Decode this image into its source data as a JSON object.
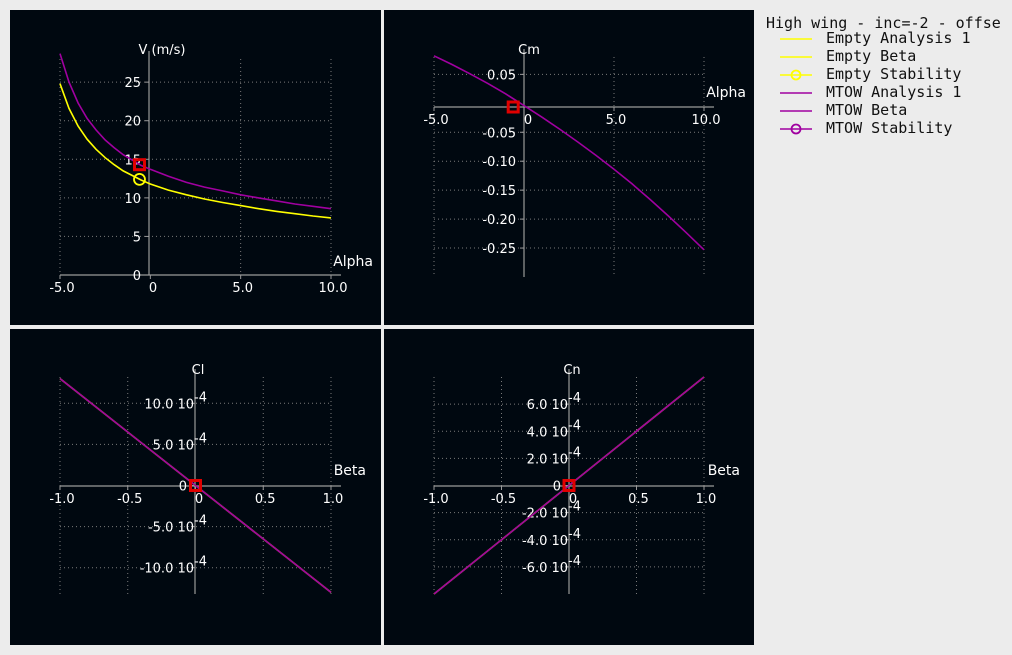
{
  "legend": {
    "title": "High wing - inc=-2 - offse",
    "entries": [
      {
        "label": "Empty Analysis 1",
        "color": "#ffff00",
        "marker": false
      },
      {
        "label": "Empty Beta",
        "color": "#ffff00",
        "marker": false
      },
      {
        "label": "Empty Stability",
        "color": "#ffff00",
        "marker": true
      },
      {
        "label": "MTOW Analysis 1",
        "color": "#a000a0",
        "marker": false
      },
      {
        "label": "MTOW Beta",
        "color": "#a000a0",
        "marker": false
      },
      {
        "label": "MTOW Stability",
        "color": "#a000a0",
        "marker": true
      }
    ]
  },
  "chart_data": [
    {
      "type": "line",
      "ylabel": "V (m/s)",
      "xlabel": "Alpha",
      "xlim": [
        -5,
        10
      ],
      "ylim": [
        0,
        28
      ],
      "xticks": [
        -5,
        0,
        5,
        10
      ],
      "xtick_labels": [
        "-5.0",
        "0",
        "5.0",
        "10.0"
      ],
      "yticks": [
        0,
        5,
        10,
        15,
        20,
        25
      ],
      "ytick_labels": [
        "0",
        "5",
        "10",
        "15",
        "20",
        "25"
      ],
      "series": [
        {
          "name": "Empty Analysis 1",
          "color": "#ffff00",
          "x": [
            -5,
            -4.5,
            -4,
            -3.5,
            -3,
            -2.5,
            -2,
            -1.5,
            -1,
            -0.5,
            0,
            1,
            2,
            3,
            4,
            5,
            6,
            7,
            8,
            9,
            10
          ],
          "y": [
            24.8,
            21.6,
            19.3,
            17.6,
            16.3,
            15.2,
            14.3,
            13.5,
            12.9,
            12.3,
            11.8,
            11.0,
            10.4,
            9.85,
            9.4,
            9.0,
            8.6,
            8.25,
            7.95,
            7.65,
            7.4
          ]
        },
        {
          "name": "MTOW Analysis 1",
          "color": "#a000a0",
          "x": [
            -5,
            -4.5,
            -4,
            -3.5,
            -3,
            -2.5,
            -2,
            -1.5,
            -1,
            -0.5,
            0,
            1,
            2,
            3,
            4,
            5,
            6,
            7,
            8,
            9,
            10
          ],
          "y": [
            28.7,
            25.0,
            22.3,
            20.3,
            18.8,
            17.5,
            16.5,
            15.6,
            14.9,
            14.2,
            13.7,
            12.8,
            12.0,
            11.4,
            10.9,
            10.4,
            10.0,
            9.6,
            9.2,
            8.9,
            8.6
          ]
        }
      ],
      "points": [
        {
          "name": "Empty Stability",
          "x": -0.6,
          "y": 12.4,
          "style": "circle",
          "color": "#ffff00"
        },
        {
          "name": "MTOW Stability",
          "x": -0.6,
          "y": 14.3,
          "style": "square",
          "color": "#e00000"
        }
      ]
    },
    {
      "type": "line",
      "ylabel": "Cm",
      "xlabel": "Alpha",
      "xlim": [
        -5,
        10
      ],
      "ylim": [
        -0.3,
        0.08
      ],
      "xticks": [
        -5,
        0,
        5,
        10
      ],
      "xtick_labels": [
        "-5.0",
        "0",
        "5.0",
        "10.0"
      ],
      "yticks": [
        0.05,
        -0.05,
        -0.1,
        -0.15,
        -0.2,
        -0.25
      ],
      "ytick_labels": [
        "0.05",
        "-0.05",
        "-0.10",
        "-0.15",
        "-0.20",
        "-0.25"
      ],
      "series": [
        {
          "name": "MTOW Analysis 1",
          "color": "#a000a0",
          "x": [
            -5,
            -4,
            -3,
            -2,
            -1,
            0,
            1,
            2,
            3,
            4,
            5,
            6,
            7,
            8,
            9,
            10
          ],
          "y": [
            0.082,
            0.067,
            0.051,
            0.034,
            0.016,
            -0.004,
            -0.024,
            -0.045,
            -0.067,
            -0.09,
            -0.114,
            -0.139,
            -0.166,
            -0.194,
            -0.223,
            -0.253
          ]
        }
      ],
      "points": [
        {
          "name": "MTOW Stability",
          "x": -0.6,
          "y": 0.0,
          "style": "square",
          "color": "#e00000"
        }
      ]
    },
    {
      "type": "line",
      "ylabel": "Cl",
      "xlabel": "Beta",
      "xlim": [
        -1,
        1
      ],
      "ylim": [
        -13.2,
        13.2
      ],
      "y_multiplier_label": "10",
      "y_exponent_label": "-4",
      "xticks": [
        -1,
        -0.5,
        0,
        0.5,
        1
      ],
      "xtick_labels": [
        "-1.0",
        "-0.5",
        "0",
        "0.5",
        "1.0"
      ],
      "yticks": [
        10,
        5,
        0,
        -5,
        -10
      ],
      "ytick_labels": [
        "10.0",
        "5.0",
        "0",
        "-5.0",
        "-10.0"
      ],
      "series": [
        {
          "name": "Empty Beta",
          "color": "#ffff00",
          "x": [
            -1,
            1
          ],
          "y": [
            13.0,
            -13.0
          ]
        },
        {
          "name": "MTOW Beta",
          "color": "#a000a0",
          "x": [
            -1,
            1
          ],
          "y": [
            13.0,
            -13.0
          ]
        }
      ],
      "points": [
        {
          "name": "MTOW Stability",
          "x": 0,
          "y": 0,
          "style": "square",
          "color": "#e00000"
        }
      ]
    },
    {
      "type": "line",
      "ylabel": "Cn",
      "xlabel": "Beta",
      "xlim": [
        -1,
        1
      ],
      "ylim": [
        -8.0,
        8.0
      ],
      "y_multiplier_label": "10",
      "y_exponent_label": "-4",
      "xticks": [
        -1,
        -0.5,
        0,
        0.5,
        1
      ],
      "xtick_labels": [
        "-1.0",
        "-0.5",
        "0",
        "0.5",
        "1.0"
      ],
      "yticks": [
        6,
        4,
        2,
        0,
        -2,
        -4,
        -6
      ],
      "ytick_labels": [
        "6.0",
        "4.0",
        "2.0",
        "0",
        "-2.0",
        "-4.0",
        "-6.0"
      ],
      "series": [
        {
          "name": "Empty Beta",
          "color": "#ffff00",
          "x": [
            -1,
            1
          ],
          "y": [
            -8.0,
            8.0
          ]
        },
        {
          "name": "MTOW Beta",
          "color": "#a000a0",
          "x": [
            -1,
            1
          ],
          "y": [
            -8.0,
            8.0
          ]
        }
      ],
      "points": [
        {
          "name": "MTOW Stability",
          "x": 0,
          "y": 0,
          "style": "square",
          "color": "#e00000"
        }
      ]
    }
  ]
}
